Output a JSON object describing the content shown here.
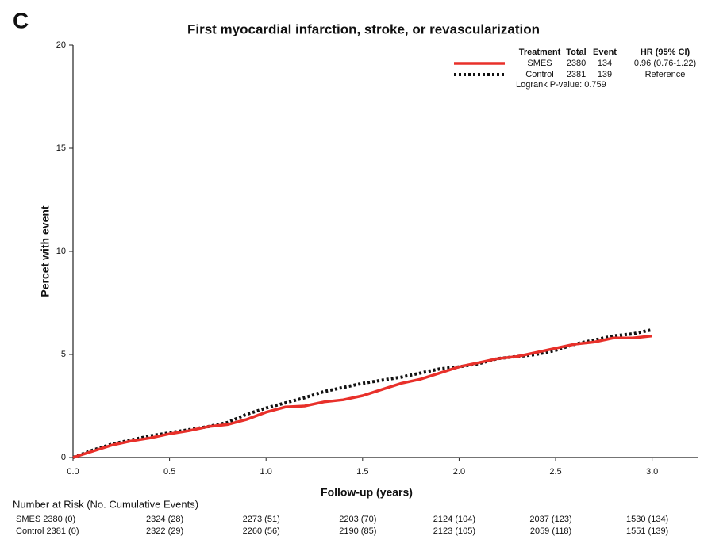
{
  "chart_data": {
    "type": "line",
    "panel_label": "C",
    "title": "First myocardial infarction, stroke, or revascularization",
    "x_label": "Follow-up (years)",
    "y_label": "Percet with event",
    "xlim": [
      0,
      3.24
    ],
    "ylim": [
      0,
      20
    ],
    "xticks": [
      {
        "value": 0,
        "label": "0.0"
      },
      0.5,
      {
        "value": 1,
        "label": "1.0"
      },
      1.5,
      {
        "value": 2,
        "label": "2.0"
      },
      2.5,
      {
        "value": 3,
        "label": "3.0"
      }
    ],
    "yticks": [
      0,
      5,
      10,
      15,
      20
    ],
    "x": [
      0,
      0.1,
      0.2,
      0.3,
      0.4,
      0.5,
      0.6,
      0.7,
      0.8,
      0.9,
      1.0,
      1.1,
      1.2,
      1.3,
      1.4,
      1.5,
      1.6,
      1.7,
      1.8,
      1.9,
      2.0,
      2.1,
      2.2,
      2.3,
      2.4,
      2.5,
      2.6,
      2.7,
      2.8,
      2.9,
      3.0
    ],
    "legend_headers": [
      "Treatment",
      "Total",
      "Event",
      "HR (95% CI)"
    ],
    "series": [
      {
        "name": "SMES",
        "color": "#e8302a",
        "dash": false,
        "total": 2380,
        "events": 134,
        "hr": "0.96 (0.76-1.22)",
        "values": [
          0,
          0.3,
          0.6,
          0.8,
          0.95,
          1.15,
          1.3,
          1.5,
          1.6,
          1.85,
          2.2,
          2.45,
          2.5,
          2.7,
          2.8,
          3.0,
          3.3,
          3.6,
          3.8,
          4.1,
          4.4,
          4.6,
          4.8,
          4.9,
          5.1,
          5.3,
          5.5,
          5.6,
          5.8,
          5.8,
          5.9
        ]
      },
      {
        "name": "Control",
        "color": "#111111",
        "dash": true,
        "total": 2381,
        "events": 139,
        "hr": "Reference",
        "values": [
          0,
          0.35,
          0.65,
          0.85,
          1.05,
          1.2,
          1.35,
          1.5,
          1.7,
          2.1,
          2.4,
          2.65,
          2.9,
          3.2,
          3.4,
          3.6,
          3.75,
          3.9,
          4.1,
          4.3,
          4.4,
          4.55,
          4.8,
          4.9,
          5.0,
          5.2,
          5.5,
          5.7,
          5.9,
          6.0,
          6.2
        ]
      }
    ],
    "logrank": "Logrank P-value: 0.759",
    "risk_table": {
      "title": "Number at Risk (No. Cumulative Events)",
      "rows": [
        [
          "SMES 2380 (0)",
          "2324 (28)",
          "2273 (51)",
          "2203 (70)",
          "2124 (104)",
          "2037 (123)",
          "1530 (134)"
        ],
        [
          "Control 2381 (0)",
          "2322 (29)",
          "2260 (56)",
          "2190 (85)",
          "2123 (105)",
          "2059 (118)",
          "1551 (139)"
        ]
      ]
    }
  }
}
